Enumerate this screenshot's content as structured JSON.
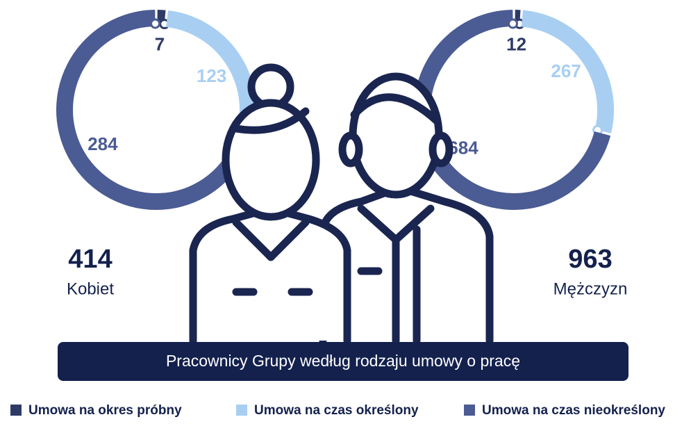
{
  "title": "Pracownicy Grupy według rodzaju umowy o pracę",
  "legend": [
    {
      "name": "Umowa na okres próbny",
      "color": "#2e3a66"
    },
    {
      "name": "Umowa na czas określony",
      "color": "#a8cff2"
    },
    {
      "name": "Umowa na czas nieokreślony",
      "color": "#4b5b93"
    }
  ],
  "chart_data": [
    {
      "type": "donut",
      "values": [
        7,
        123,
        284
      ],
      "total": 414,
      "total_label": "Kobiet"
    },
    {
      "type": "donut",
      "values": [
        12,
        267,
        684
      ],
      "total": 963,
      "total_label": "Mężczyzn"
    }
  ]
}
